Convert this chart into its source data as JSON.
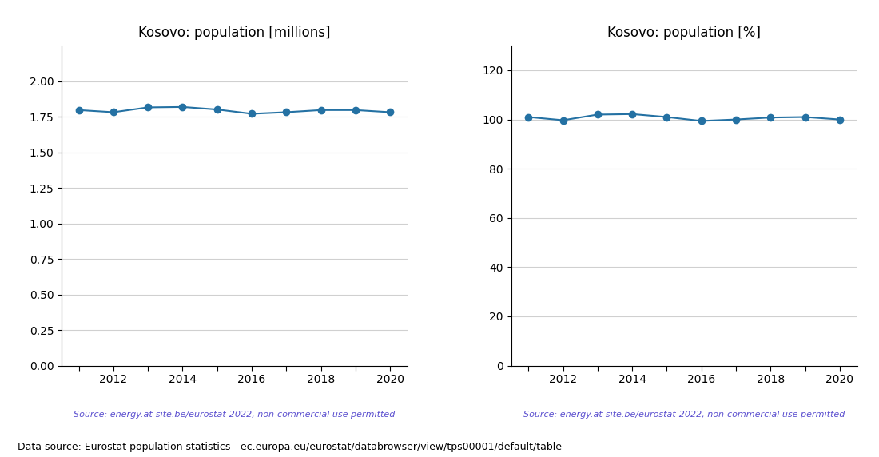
{
  "years": [
    2011,
    2012,
    2013,
    2014,
    2015,
    2016,
    2017,
    2018,
    2019,
    2020
  ],
  "pop_millions": [
    1.797,
    1.782,
    1.816,
    1.819,
    1.801,
    1.771,
    1.782,
    1.797,
    1.797,
    1.782
  ],
  "pop_percent": [
    101.0,
    99.7,
    102.0,
    102.2,
    101.0,
    99.4,
    100.0,
    100.8,
    101.0,
    100.0
  ],
  "title_left": "Kosovo: population [millions]",
  "title_right": "Kosovo: population [%]",
  "source_text": "Source: energy.at-site.be/eurostat-2022, non-commercial use permitted",
  "footer_text": "Data source: Eurostat population statistics - ec.europa.eu/eurostat/databrowser/view/tps00001/default/table",
  "line_color": "#2471a3",
  "source_color": "#5b4fcf",
  "ylim_left": [
    0.0,
    2.25
  ],
  "yticks_left": [
    0.0,
    0.25,
    0.5,
    0.75,
    1.0,
    1.25,
    1.5,
    1.75,
    2.0
  ],
  "ylim_right": [
    0,
    130
  ],
  "yticks_right": [
    0,
    20,
    40,
    60,
    80,
    100,
    120
  ],
  "xlim": [
    2010.5,
    2020.5
  ],
  "xticks_major": [
    2012,
    2014,
    2016,
    2018,
    2020
  ],
  "xticks_all": [
    2011,
    2012,
    2013,
    2014,
    2015,
    2016,
    2017,
    2018,
    2019,
    2020
  ],
  "xticklabels_major": [
    "2012",
    "2014",
    "2016",
    "2018",
    "2020"
  ]
}
